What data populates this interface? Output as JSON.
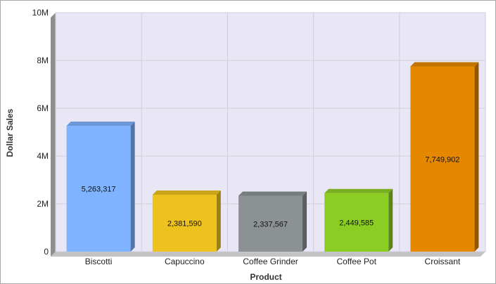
{
  "chart_data": {
    "type": "bar",
    "title": "",
    "xlabel": "Product",
    "ylabel": "Dollar Sales",
    "categories": [
      "Biscotti",
      "Capuccino",
      "Coffee Grinder",
      "Coffee Pot",
      "Croissant"
    ],
    "values": [
      5263317,
      2381590,
      2337567,
      2449585,
      7749902
    ],
    "value_labels": [
      "5,263,317",
      "2,381,590",
      "2,337,567",
      "2,449,585",
      "7,749,902"
    ],
    "colors": [
      "#7fb3ff",
      "#eec21e",
      "#8c9293",
      "#8ccd24",
      "#e58800"
    ],
    "ylim": [
      0,
      10000000
    ],
    "yticks": [
      0,
      2000000,
      4000000,
      6000000,
      8000000,
      10000000
    ],
    "ytick_labels": [
      "0",
      "2M",
      "4M",
      "6M",
      "8M",
      "10M"
    ],
    "grid": true,
    "legend": "none"
  }
}
